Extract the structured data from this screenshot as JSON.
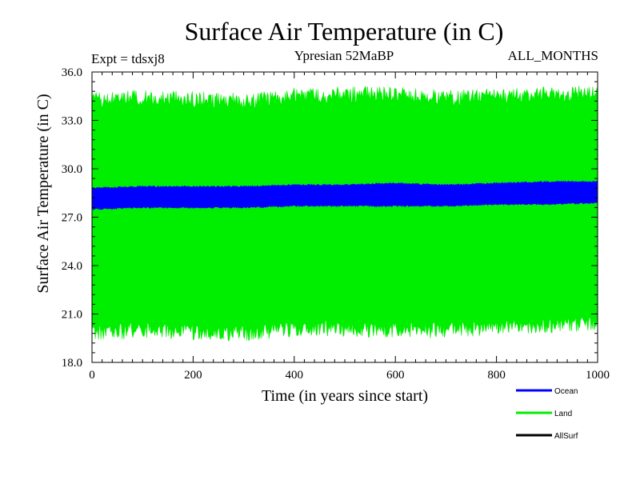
{
  "chart_data": {
    "type": "area",
    "title": "Surface Air Temperature (in C)",
    "subtitle_left": "Expt = tdsxj8",
    "subtitle_center": "Ypresian  52MaBP",
    "subtitle_right": "ALL_MONTHS",
    "xlabel": "Time (in years since start)",
    "ylabel": "Surface Air Temperature (in C)",
    "xlim": [
      0,
      1000
    ],
    "ylim": [
      18.0,
      36.0
    ],
    "x_ticks": [
      0,
      200,
      400,
      600,
      800,
      1000
    ],
    "x_tick_labels": [
      "0",
      "200",
      "400",
      "600",
      "800",
      "1000"
    ],
    "y_ticks": [
      18.0,
      21.0,
      24.0,
      27.0,
      30.0,
      33.0,
      36.0
    ],
    "y_tick_labels": [
      "18.0",
      "21.0",
      "24.0",
      "27.0",
      "30.0",
      "33.0",
      "36.0"
    ],
    "legend_position": "bottom-right, below plot",
    "series": [
      {
        "name": "Land",
        "color": "#00ee00",
        "style": "monthly oscillation band",
        "x": [
          0,
          100,
          200,
          300,
          400,
          500,
          600,
          700,
          800,
          900,
          1000
        ],
        "upper": [
          34.2,
          34.4,
          34.3,
          34.2,
          34.5,
          34.6,
          34.6,
          34.4,
          34.5,
          34.6,
          34.7
        ],
        "lower": [
          19.8,
          20.0,
          19.9,
          19.8,
          20.1,
          20.1,
          20.0,
          20.0,
          20.2,
          20.3,
          20.4
        ]
      },
      {
        "name": "Ocean",
        "color": "#0000ff",
        "style": "monthly oscillation band",
        "x": [
          0,
          100,
          200,
          300,
          400,
          500,
          600,
          700,
          800,
          900,
          1000
        ],
        "upper": [
          28.8,
          28.9,
          28.9,
          28.9,
          29.0,
          29.0,
          29.1,
          29.0,
          29.1,
          29.2,
          29.2
        ],
        "lower": [
          27.5,
          27.6,
          27.6,
          27.6,
          27.7,
          27.7,
          27.7,
          27.7,
          27.8,
          27.8,
          27.9
        ]
      },
      {
        "name": "AllSurf",
        "color": "#000000",
        "style": "not visible in plot area",
        "x": [],
        "upper": [],
        "lower": []
      }
    ],
    "legend": [
      {
        "name": "Ocean",
        "color": "#0000ff"
      },
      {
        "name": "Land",
        "color": "#00ee00"
      },
      {
        "name": "AllSurf",
        "color": "#000000"
      }
    ]
  }
}
